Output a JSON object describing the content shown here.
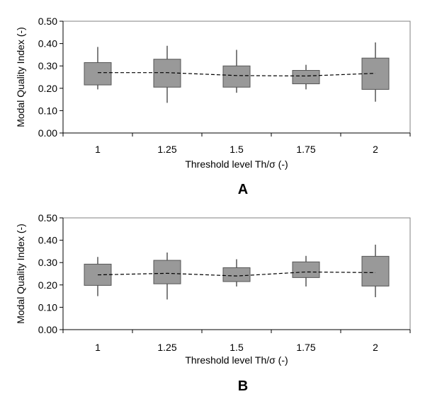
{
  "chart_data": [
    {
      "type": "box",
      "panel_label": "A",
      "xlabel": "Threshold level Th/σ (-)",
      "ylabel": "Modal Quality Index (-)",
      "ylim": [
        0,
        0.5
      ],
      "y_ticks": [
        "0.00",
        "0.10",
        "0.20",
        "0.30",
        "0.40",
        "0.50"
      ],
      "categories": [
        "1",
        "1.25",
        "1.5",
        "1.75",
        "2"
      ],
      "boxes": [
        {
          "min": 0.195,
          "q1": 0.215,
          "q3": 0.315,
          "max": 0.385,
          "mean": 0.27
        },
        {
          "min": 0.135,
          "q1": 0.205,
          "q3": 0.33,
          "max": 0.39,
          "mean": 0.27
        },
        {
          "min": 0.18,
          "q1": 0.205,
          "q3": 0.3,
          "max": 0.372,
          "mean": 0.257
        },
        {
          "min": 0.195,
          "q1": 0.22,
          "q3": 0.28,
          "max": 0.305,
          "mean": 0.255
        },
        {
          "min": 0.14,
          "q1": 0.195,
          "q3": 0.335,
          "max": 0.405,
          "mean": 0.267
        }
      ],
      "box_color": "#999999",
      "mean_line": "dashed"
    },
    {
      "type": "box",
      "panel_label": "B",
      "xlabel": "Threshold level Th/σ (-)",
      "ylabel": "Modal Quality Index (-)",
      "ylim": [
        0,
        0.5
      ],
      "y_ticks": [
        "0.00",
        "0.10",
        "0.20",
        "0.30",
        "0.40",
        "0.50"
      ],
      "categories": [
        "1",
        "1.25",
        "1.5",
        "1.75",
        "2"
      ],
      "boxes": [
        {
          "min": 0.15,
          "q1": 0.198,
          "q3": 0.293,
          "max": 0.325,
          "mean": 0.245
        },
        {
          "min": 0.135,
          "q1": 0.205,
          "q3": 0.31,
          "max": 0.345,
          "mean": 0.252
        },
        {
          "min": 0.193,
          "q1": 0.215,
          "q3": 0.277,
          "max": 0.315,
          "mean": 0.24
        },
        {
          "min": 0.193,
          "q1": 0.233,
          "q3": 0.303,
          "max": 0.33,
          "mean": 0.258
        },
        {
          "min": 0.145,
          "q1": 0.195,
          "q3": 0.328,
          "max": 0.38,
          "mean": 0.255
        }
      ],
      "box_color": "#999999",
      "mean_line": "dashed"
    }
  ]
}
